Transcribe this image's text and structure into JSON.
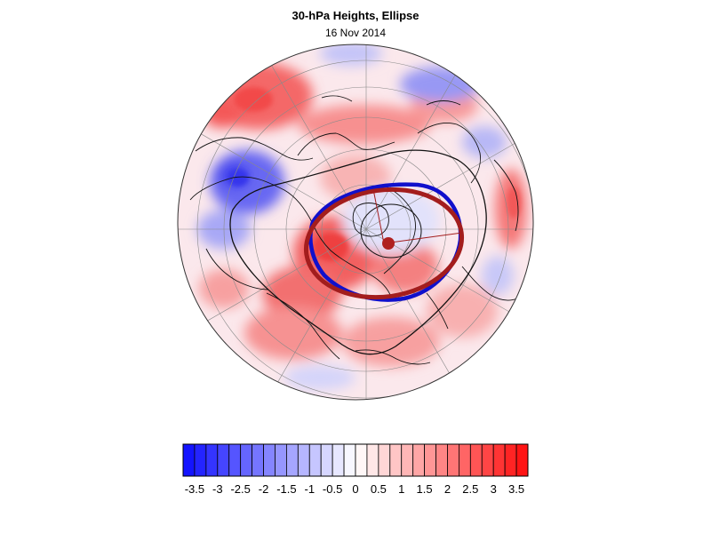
{
  "header": {
    "title": "30-hPa Heights, Ellipse",
    "date": "16 Nov 2014"
  },
  "map": {
    "projection": "polar-stereographic",
    "hemisphere": "northern",
    "field": "30-hPa height anomaly",
    "outline_color": "#000000",
    "grid_color": "#8a8a8a"
  },
  "ellipse": {
    "fitted_color": "#a31d1d",
    "vortex_edge_color": "#1010cc",
    "center_marker_color": "#b02020"
  },
  "colorbar": {
    "tick_labels": [
      "-3.5",
      "-3",
      "-2.5",
      "-2",
      "-1.5",
      "-1",
      "-0.5",
      "0",
      "0.5",
      "1",
      "1.5",
      "2",
      "2.5",
      "3",
      "3.5"
    ],
    "min": -3.75,
    "max": 3.75,
    "step": 0.25,
    "negative_color": "#1414ff",
    "positive_color": "#ff1414",
    "neutral_color": "#ffffff"
  }
}
